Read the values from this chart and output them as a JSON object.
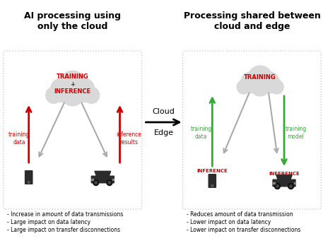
{
  "bg_color": "#ffffff",
  "panel_bg": "#ffffff",
  "box_border_color": "#cccccc",
  "cloud_color": "#d9d9d9",
  "device_color": "#2b2b2b",
  "red_color": "#cc0000",
  "green_color": "#33aa33",
  "gray_arrow_color": "#aaaaaa",
  "title_left": "AI processing using\nonly the cloud",
  "title_right": "Processing shared between\ncloud and edge",
  "left_cloud_label": "TRAINING\n+\nINFERENCE",
  "right_cloud_label": "TRAINING",
  "left_label1": "training\ndata",
  "left_label2": "inference\nresults",
  "right_label1": "training\ndata",
  "right_label2": "training\nmodel",
  "right_inf1": "INFERENCE",
  "right_inf2": "INFERENCE",
  "middle_top": "Cloud",
  "middle_bot": "Edge",
  "bullet_left": [
    "- Increase in amount of data transmissions",
    "- Large impact on data latency",
    "- Large impact on transfer disconnections"
  ],
  "bullet_right": [
    "- Reduces amount of data transmission",
    "- Lower impact on data latency",
    "- Lower impact on transfer disconnections"
  ]
}
